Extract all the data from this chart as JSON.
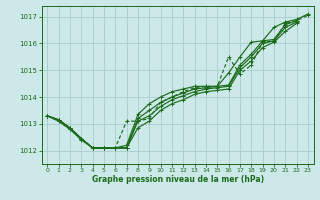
{
  "xlabel": "Graphe pression niveau de la mer (hPa)",
  "bg_color": "#cce8e8",
  "grid_color": "#aacccc",
  "line_color": "#1a6b1a",
  "ylim": [
    1011.5,
    1017.4
  ],
  "xlim": [
    -0.5,
    23.5
  ],
  "yticks": [
    1012,
    1013,
    1014,
    1015,
    1016,
    1017
  ],
  "xticks": [
    0,
    1,
    2,
    3,
    4,
    5,
    6,
    7,
    8,
    9,
    10,
    11,
    12,
    13,
    14,
    15,
    16,
    17,
    18,
    19,
    20,
    21,
    22,
    23
  ],
  "series": [
    {
      "x": [
        0,
        1,
        2,
        3,
        4,
        5,
        6,
        7,
        8,
        9,
        10,
        11,
        12,
        13,
        14,
        15,
        16,
        17,
        18,
        19,
        20,
        21,
        22
      ],
      "y": [
        1013.3,
        1013.15,
        1012.85,
        1012.45,
        1012.1,
        1012.1,
        1012.1,
        1012.1,
        1012.85,
        1013.1,
        1013.5,
        1013.75,
        1013.9,
        1014.1,
        1014.2,
        1014.25,
        1014.3,
        1015.0,
        1015.35,
        1015.85,
        1016.05,
        1016.45,
        1016.75
      ]
    },
    {
      "x": [
        0,
        1,
        2,
        3,
        4,
        5,
        6,
        7,
        8,
        9,
        10,
        11,
        12,
        13,
        14,
        15,
        16,
        17,
        18,
        19,
        20,
        21,
        22
      ],
      "y": [
        1013.3,
        1013.15,
        1012.85,
        1012.45,
        1012.1,
        1012.1,
        1012.1,
        1012.1,
        1013.1,
        1013.3,
        1013.65,
        1013.9,
        1014.05,
        1014.2,
        1014.3,
        1014.35,
        1014.4,
        1015.1,
        1015.5,
        1016.0,
        1016.1,
        1016.6,
        1016.8
      ]
    },
    {
      "x": [
        0,
        1,
        2,
        3,
        4,
        5,
        6,
        7,
        8,
        9,
        10,
        11,
        12,
        13,
        14,
        15,
        16,
        17,
        18,
        19,
        20,
        21,
        22
      ],
      "y": [
        1013.3,
        1013.15,
        1012.85,
        1012.45,
        1012.1,
        1012.1,
        1012.1,
        1012.1,
        1013.2,
        1013.5,
        1013.8,
        1014.0,
        1014.15,
        1014.3,
        1014.35,
        1014.4,
        1014.45,
        1015.2,
        1015.6,
        1016.1,
        1016.15,
        1016.7,
        1016.85
      ]
    },
    {
      "x": [
        0,
        1,
        2,
        3,
        4,
        5,
        6,
        7,
        8,
        9,
        10,
        11,
        12,
        13,
        14,
        15,
        16,
        17,
        18,
        19,
        20,
        21,
        22,
        23
      ],
      "y": [
        1013.3,
        1013.1,
        1012.8,
        1012.4,
        1012.1,
        1012.1,
        1012.1,
        1012.2,
        1013.35,
        1013.75,
        1014.0,
        1014.2,
        1014.3,
        1014.4,
        1014.4,
        1014.4,
        1014.9,
        1015.5,
        1016.05,
        1016.1,
        1016.6,
        1016.8,
        1016.9,
        1017.1
      ]
    }
  ],
  "dotted_series": {
    "x": [
      0,
      1,
      2,
      3,
      4,
      5,
      6,
      7,
      8,
      9,
      10,
      11,
      12,
      13,
      14,
      15,
      16,
      17,
      18,
      19,
      20,
      21,
      22,
      23
    ],
    "y": [
      1013.3,
      1013.1,
      1012.8,
      1012.45,
      1012.1,
      1012.1,
      1012.1,
      1013.1,
      1013.1,
      1013.2,
      1013.8,
      1014.0,
      1014.2,
      1014.35,
      1014.4,
      1014.4,
      1015.5,
      1014.85,
      1015.2,
      1016.05,
      1016.1,
      1016.75,
      1016.85,
      1017.05
    ]
  }
}
